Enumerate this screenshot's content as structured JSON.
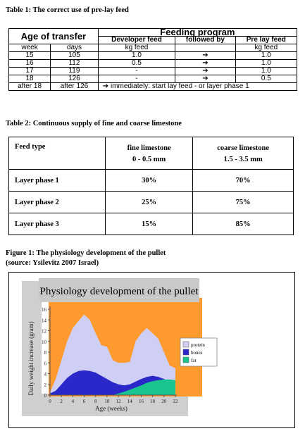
{
  "table1": {
    "title": "Table 1: The correct use of pre-lay feed",
    "age_header": "Age of transfer",
    "feeding_header": "Feeding program",
    "col_developer": "Developer feed",
    "col_followed": "followed by",
    "col_prelay": "Pre lay feed",
    "unit_week": "week",
    "unit_days": "days",
    "unit_kg1": "kg feed",
    "unit_kg2": "kg feed",
    "rows": [
      {
        "week": "15",
        "days": "105",
        "dev": "1.0",
        "arrow": "➔",
        "pre": "1.0"
      },
      {
        "week": "16",
        "days": "112",
        "dev": "0.5",
        "arrow": "➔",
        "pre": "1.0"
      },
      {
        "week": "17",
        "days": "119",
        "dev": "-",
        "arrow": "➔",
        "pre": "1.0"
      },
      {
        "week": "18",
        "days": "126",
        "dev": "-",
        "arrow": "➔",
        "pre": "0.5"
      }
    ],
    "last_week": "after 18",
    "last_days": "after 126",
    "last_note": "➔ immediately: start lay feed - or layer phase 1"
  },
  "table2": {
    "title": "Table 2: Continuous supply of fine and coarse limestone",
    "h_type": "Feed type",
    "h_fine": "fine limestone",
    "h_fine_range": "0 - 0.5 mm",
    "h_coarse": "coarse limestone",
    "h_coarse_range": "1.5 - 3.5 mm",
    "rows": [
      {
        "type": "Layer phase 1",
        "fine": "30%",
        "coarse": "70%"
      },
      {
        "type": "Layer phase 2",
        "fine": "25%",
        "coarse": "75%"
      },
      {
        "type": "Layer phase 3",
        "fine": "15%",
        "coarse": "85%"
      }
    ]
  },
  "figure": {
    "caption_line1": "Figure 1: The physiology development of the pullet",
    "caption_line2": "(source: Ysilevitz 2007 Israel)"
  },
  "chart_data": {
    "type": "area",
    "title": "Physiology development of the pullet",
    "xlabel": "Age (weeks)",
    "ylabel": "Daily weight increase (gram)",
    "x": [
      0,
      1,
      2,
      3,
      4,
      5,
      6,
      7,
      8,
      9,
      10,
      11,
      12,
      13,
      14,
      15,
      16,
      17,
      18,
      19,
      20,
      21,
      22
    ],
    "xticks": [
      "0",
      "2",
      "4",
      "6",
      "8",
      "10",
      "12",
      "14",
      "16",
      "18",
      "20",
      "22"
    ],
    "yticks": [
      "0",
      "2",
      "4",
      "6",
      "8",
      "10",
      "12",
      "14",
      "16"
    ],
    "xlim": [
      0,
      22
    ],
    "ylim": [
      0,
      16
    ],
    "grid": false,
    "legend_position": "right",
    "series": [
      {
        "name": "protein",
        "color": "#cfcff5",
        "values": [
          0.5,
          3,
          6.5,
          10,
          12.5,
          13.8,
          15,
          14,
          11.5,
          9.3,
          9,
          6.5,
          6,
          6,
          6.2,
          10,
          11.5,
          12.5,
          11.5,
          10.5,
          8,
          5.5,
          5
        ]
      },
      {
        "name": "bones",
        "color": "#2a28c8",
        "values": [
          0.3,
          0.8,
          2,
          3.2,
          4,
          4.5,
          4.6,
          4.5,
          4.2,
          3.6,
          3,
          2.4,
          2,
          1.8,
          2,
          2.5,
          3,
          3.4,
          3.6,
          3.4,
          3,
          2.6,
          2.4
        ]
      },
      {
        "name": "fat",
        "color": "#19c48f",
        "values": [
          0,
          0,
          0,
          0,
          0,
          0,
          0,
          0,
          0,
          0,
          0,
          0,
          0.3,
          0.6,
          1,
          1.4,
          1.8,
          2.3,
          2.6,
          2.8,
          2.9,
          2.9,
          2.8
        ]
      }
    ]
  },
  "colors": {
    "plot_bg": "#ff9a2e",
    "title_box": "#c9c9c9",
    "left_panel": "#cfcfcf"
  }
}
